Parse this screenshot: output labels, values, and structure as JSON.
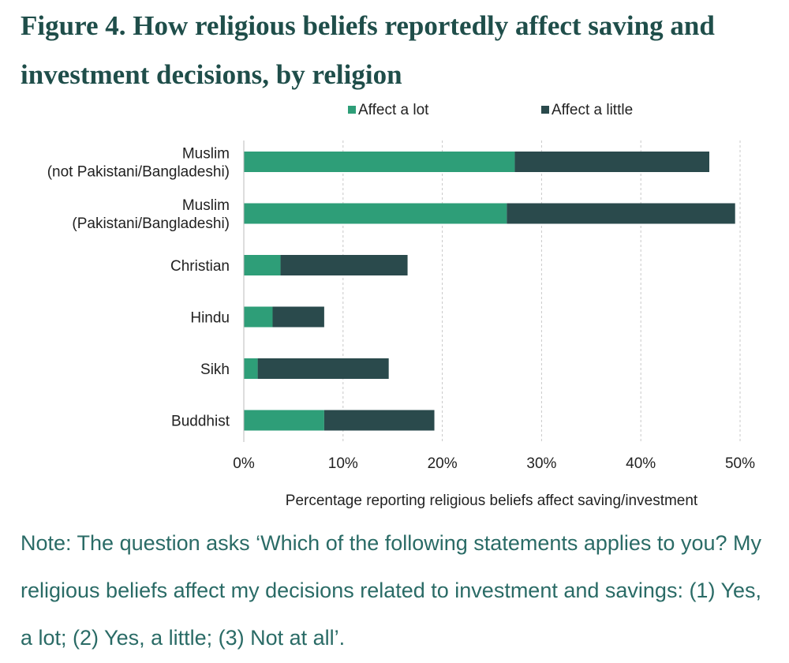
{
  "figure": {
    "title": "Figure 4. How religious beliefs reportedly affect saving and investment decisions, by religion",
    "note": "Note: The question asks ‘Which of the following statements applies to you? My religious beliefs affect my decisions related to investment and savings: (1) Yes, a lot; (2) Yes, a little; (3) Not at all’."
  },
  "colors": {
    "affect_a_lot": "#2e9e78",
    "affect_a_little": "#2a4a4c",
    "title": "#1f4e4a",
    "note": "#2a6b66"
  },
  "chart_data": {
    "type": "bar",
    "orientation": "horizontal",
    "stacked": true,
    "categories": [
      [
        "Muslim",
        "(not Pakistani/Bangladeshi)"
      ],
      [
        "Muslim",
        "(Pakistani/Bangladeshi)"
      ],
      [
        "Christian"
      ],
      [
        "Hindu"
      ],
      [
        "Sikh"
      ],
      [
        "Buddhist"
      ]
    ],
    "series": [
      {
        "name": "Affect a lot",
        "values": [
          27.3,
          26.5,
          3.7,
          2.9,
          1.4,
          8.1
        ]
      },
      {
        "name": "Affect a little",
        "values": [
          19.6,
          23.0,
          12.8,
          5.2,
          13.2,
          11.1
        ]
      }
    ],
    "xlabel": "Percentage reporting religious beliefs affect saving/investment",
    "xlim": [
      0,
      50
    ],
    "xticks": [
      0,
      10,
      20,
      30,
      40,
      50
    ],
    "xtick_labels": [
      "0%",
      "10%",
      "20%",
      "30%",
      "40%",
      "50%"
    ],
    "grid": "vertical dashed",
    "legend_position": "top"
  }
}
